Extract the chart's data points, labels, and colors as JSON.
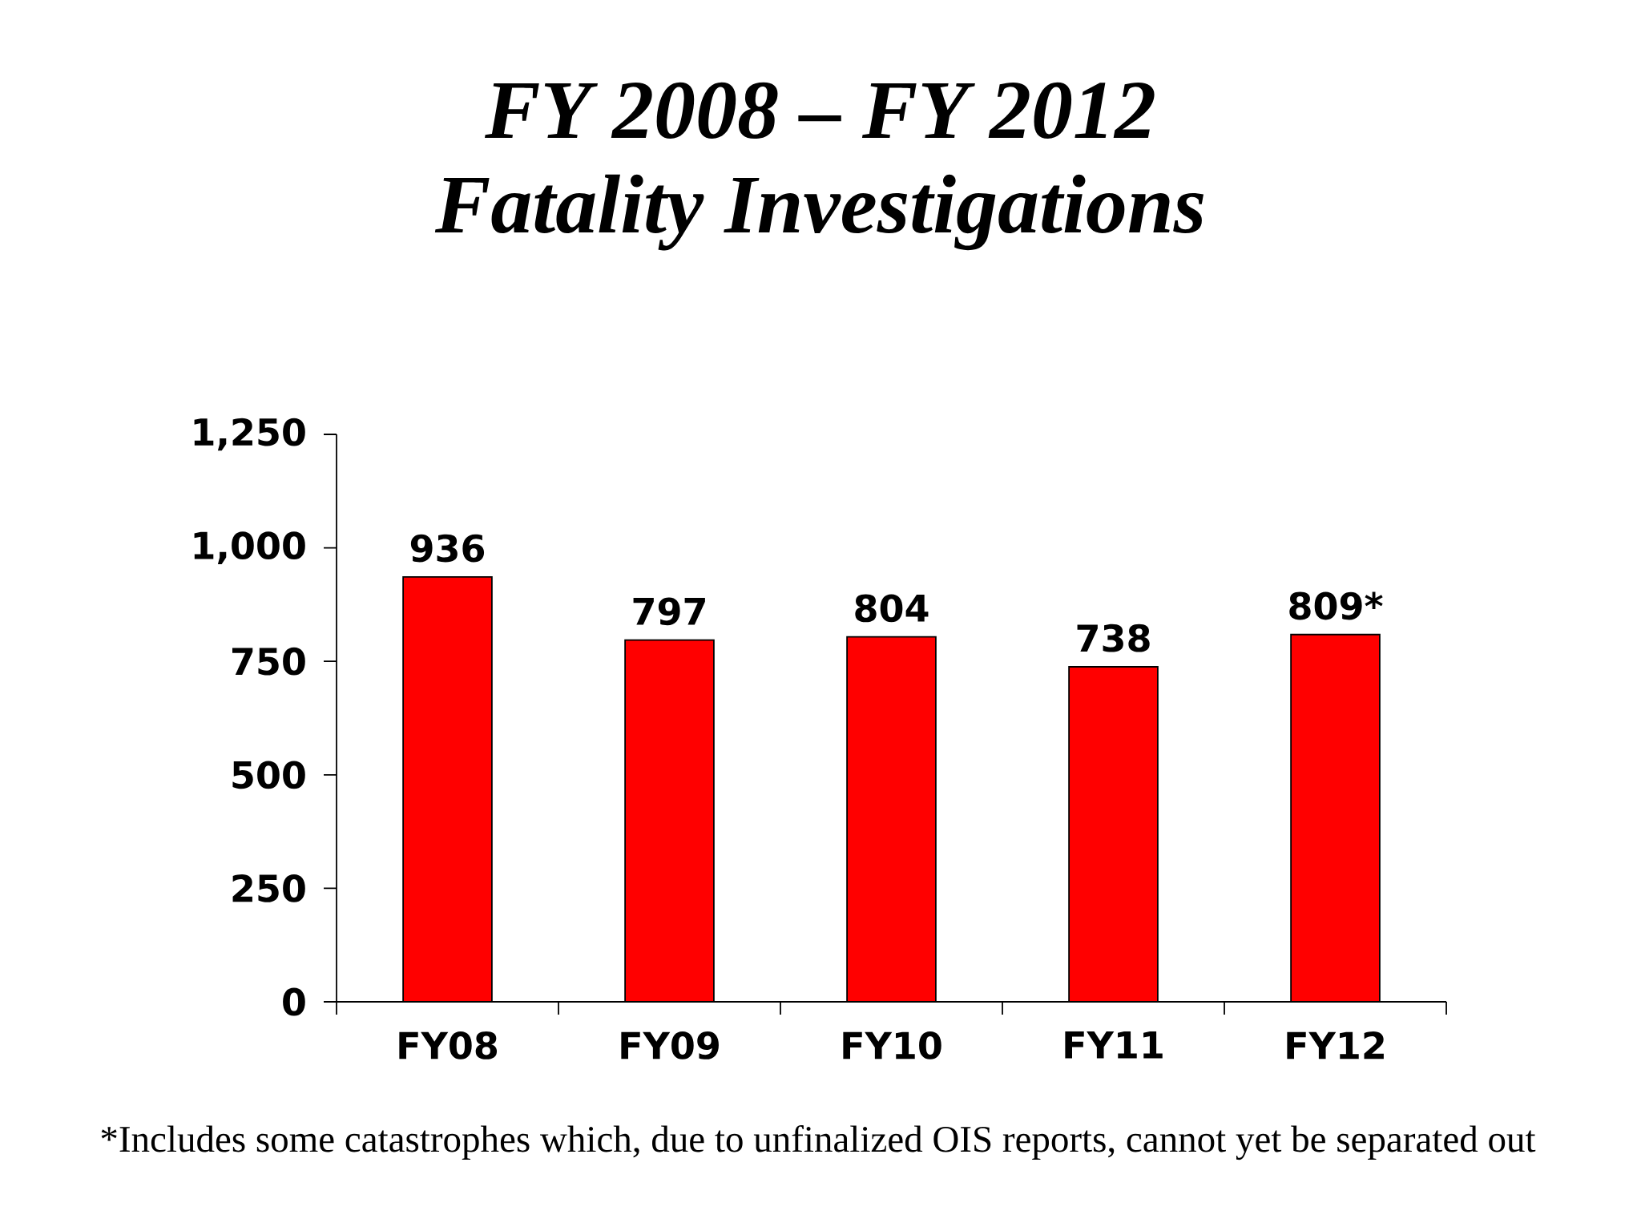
{
  "chart_data": {
    "type": "bar",
    "title": "FY 2008 – FY 2012",
    "subtitle": "Fatality Investigations",
    "categories": [
      "FY08",
      "FY09",
      "FY10",
      "FY11",
      "FY12"
    ],
    "values": [
      936,
      797,
      804,
      738,
      809
    ],
    "color": "#ff0000",
    "value_labels": [
      "936",
      "797",
      "804",
      "738",
      "809*"
    ],
    "ylim": [
      0,
      1250
    ],
    "yticks": [
      0,
      250,
      500,
      750,
      {
        "value": 1000,
        "label": "1,000"
      },
      {
        "value": 1250,
        "label": "1,250"
      }
    ],
    "annotations": [
      "*Includes some catastrophes which, due to unfinalized OIS reports, cannot yet be separated out"
    ]
  }
}
